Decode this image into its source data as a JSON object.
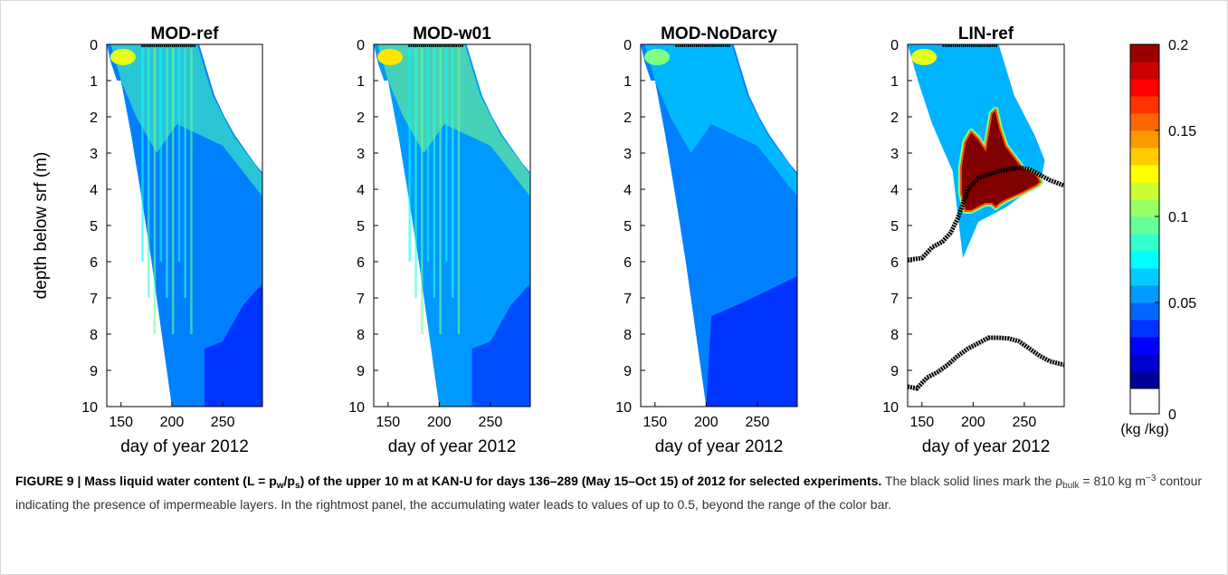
{
  "chart_data": [
    {
      "type": "heatmap",
      "title": "MOD-ref",
      "xlabel": "day of year 2012",
      "ylabel": "depth below srf (m)",
      "x_ticks": [
        "150",
        "200",
        "250"
      ],
      "y_ticks": [
        "0",
        "1",
        "2",
        "3",
        "4",
        "5",
        "6",
        "7",
        "8",
        "9",
        "10"
      ],
      "xlim": [
        136,
        289
      ],
      "ylim": [
        10,
        0
      ],
      "wet_front_depth": {
        "x": [
          136,
          140,
          146,
          150,
          160,
          170,
          180,
          190,
          195,
          200,
          210,
          220,
          230,
          240,
          250,
          260,
          270,
          280,
          289
        ],
        "y": [
          0,
          0.5,
          1.0,
          1.0,
          2.5,
          4.2,
          6.0,
          8.0,
          9.0,
          10.0,
          10,
          10,
          10,
          10,
          10,
          10,
          10,
          10,
          10
        ]
      },
      "dry_snow_boundary": {
        "x": [
          225,
          240,
          250,
          260,
          270,
          280,
          289
        ],
        "y": [
          0,
          1.4,
          2.0,
          2.5,
          2.9,
          3.3,
          3.6
        ]
      },
      "typical_values": {
        "near_surface_early": 0.12,
        "upper_meter": 0.09,
        "bulk": 0.05,
        "deep_late": 0.035
      }
    },
    {
      "type": "heatmap",
      "title": "MOD-w01",
      "xlabel": "day of year 2012",
      "x_ticks": [
        "150",
        "200",
        "250"
      ],
      "y_ticks": [
        "0",
        "1",
        "2",
        "3",
        "4",
        "5",
        "6",
        "7",
        "8",
        "9",
        "10"
      ],
      "xlim": [
        136,
        289
      ],
      "ylim": [
        10,
        0
      ],
      "typical_values": {
        "near_surface_early": 0.13,
        "upper_meter": 0.1,
        "bulk": 0.055,
        "deep_late": 0.04
      }
    },
    {
      "type": "heatmap",
      "title": "MOD-NoDarcy",
      "xlabel": "day of year 2012",
      "x_ticks": [
        "150",
        "200",
        "250"
      ],
      "y_ticks": [
        "0",
        "1",
        "2",
        "3",
        "4",
        "5",
        "6",
        "7",
        "8",
        "9",
        "10"
      ],
      "xlim": [
        136,
        289
      ],
      "ylim": [
        10,
        0
      ],
      "typical_values": {
        "near_surface_early": 0.1,
        "upper_meter": 0.07,
        "bulk": 0.05,
        "deep_late": 0.035
      }
    },
    {
      "type": "heatmap",
      "title": "LIN-ref",
      "xlabel": "day of year 2012",
      "x_ticks": [
        "150",
        "200",
        "250"
      ],
      "y_ticks": [
        "0",
        "1",
        "2",
        "3",
        "4",
        "5",
        "6",
        "7",
        "8",
        "9",
        "10"
      ],
      "xlim": [
        136,
        289
      ],
      "ylim": [
        10,
        0
      ],
      "typical_values": {
        "near_surface_early": 0.12,
        "upper_meter": 0.06,
        "saturated_zone": 0.2
      },
      "saturated_zone_depth": {
        "x": [
          188,
          192,
          198,
          205,
          212,
          218,
          222,
          226,
          232,
          240,
          248,
          255,
          262,
          266
        ],
        "top": [
          3.4,
          2.7,
          2.4,
          2.6,
          2.9,
          1.9,
          1.8,
          2.3,
          2.8,
          3.1,
          3.4,
          3.5,
          3.6,
          3.8
        ],
        "bottom": [
          4.1,
          4.6,
          4.6,
          4.5,
          4.4,
          4.4,
          4.5,
          4.4,
          4.3,
          4.2,
          4.1,
          4.0,
          3.9,
          3.8
        ]
      },
      "impermeable_contour_upper": {
        "x": [
          136,
          150,
          160,
          170,
          178,
          185,
          195,
          205,
          215,
          225,
          235,
          245,
          255,
          265,
          275,
          289
        ],
        "y": [
          5.95,
          5.9,
          5.6,
          5.45,
          5.2,
          4.8,
          4.0,
          3.7,
          3.6,
          3.5,
          3.45,
          3.4,
          3.45,
          3.6,
          3.75,
          3.9
        ]
      },
      "impermeable_contour_lower": {
        "x": [
          136,
          145,
          155,
          165,
          175,
          185,
          195,
          205,
          215,
          225,
          235,
          245,
          255,
          265,
          275,
          289
        ],
        "y": [
          9.45,
          9.5,
          9.2,
          9.05,
          8.85,
          8.6,
          8.4,
          8.25,
          8.1,
          8.1,
          8.12,
          8.2,
          8.4,
          8.6,
          8.75,
          8.85
        ]
      }
    }
  ],
  "colorbar": {
    "min": 0,
    "max": 0.2,
    "n_steps": 20,
    "tick_labels": [
      {
        "value": 0.2,
        "label": "0.2"
      },
      {
        "value": 0.15,
        "label": "0.15"
      },
      {
        "value": 0.1,
        "label": "0.1"
      },
      {
        "value": 0.05,
        "label": "0.05"
      },
      {
        "value": 0,
        "label": "0"
      }
    ],
    "unit_label": "(kg /kg)"
  },
  "caption": {
    "lead": "FIGURE 9 | Mass liquid water content (L = p",
    "lead_sub1": "w",
    "lead_mid": "/p",
    "lead_sub2": "s",
    "lead_tail": ") of the upper 10 m at KAN-U for days 136–289 (May 15–Oct 15) of 2012 for selected experiments.",
    "body1": " The black solid lines mark the ρ",
    "body_sub": "bulk",
    "body2": " = 810 kg m",
    "body_sup": "−3",
    "body3": " contour indicating the presence of impermeable layers. In the rightmost panel, the accumulating water leads to values of up to 0.5, beyond the range of the color bar."
  }
}
